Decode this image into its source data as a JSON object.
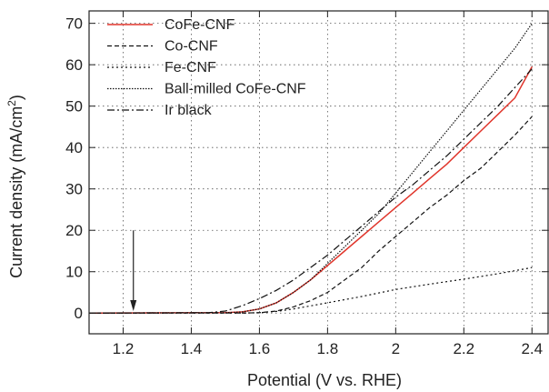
{
  "chart_data": {
    "type": "line",
    "xlabel": "Potential (V vs. RHE)",
    "ylabel": "Current density (mA/cm",
    "ylabel_superscript": "2",
    "ylabel_suffix": ")",
    "xlim": [
      1.1,
      2.45
    ],
    "ylim": [
      -5,
      73
    ],
    "xticks": [
      1.2,
      1.4,
      1.6,
      1.8,
      2.0,
      2.2,
      2.4
    ],
    "xtick_labels": [
      "1.2",
      "1.4",
      "1.6",
      "1.8",
      "2",
      "2.2",
      "2.4"
    ],
    "yticks": [
      0,
      10,
      20,
      30,
      40,
      50,
      60,
      70
    ],
    "ytick_labels": [
      "0",
      "10",
      "20",
      "30",
      "40",
      "50",
      "60",
      "70"
    ],
    "grid": "dotted",
    "legend_position": "top-left",
    "annotation": {
      "type": "arrow",
      "x": 1.23,
      "y_from": 20,
      "y_to": 0.5
    },
    "series": [
      {
        "name": "CoFe-CNF",
        "color": "#e0352b",
        "style": "solid",
        "x": [
          1.1,
          1.5,
          1.55,
          1.6,
          1.65,
          1.7,
          1.75,
          1.8,
          1.85,
          1.9,
          1.95,
          2.0,
          2.05,
          2.1,
          2.15,
          2.2,
          2.25,
          2.3,
          2.35,
          2.4
        ],
        "y": [
          0,
          0.1,
          0.3,
          1,
          2.5,
          5,
          8,
          11.5,
          15,
          18.5,
          22,
          25.5,
          29,
          32.5,
          36,
          40,
          44,
          48,
          52,
          59.5
        ]
      },
      {
        "name": "Co-CNF",
        "color": "#111111",
        "style": "dashed",
        "x": [
          1.1,
          1.55,
          1.6,
          1.65,
          1.7,
          1.75,
          1.8,
          1.85,
          1.9,
          1.95,
          2.0,
          2.05,
          2.1,
          2.15,
          2.2,
          2.25,
          2.3,
          2.35,
          2.4
        ],
        "y": [
          0,
          0,
          0.1,
          0.5,
          1.5,
          3,
          5,
          8,
          11,
          15,
          18.5,
          22,
          25.5,
          28.5,
          32,
          35,
          39,
          43,
          47.5
        ]
      },
      {
        "name": "Fe-CNF",
        "color": "#111111",
        "style": "dotted",
        "x": [
          1.1,
          1.55,
          1.6,
          1.65,
          1.7,
          1.8,
          1.9,
          2.0,
          2.1,
          2.2,
          2.3,
          2.4
        ],
        "y": [
          0,
          0,
          0.1,
          0.4,
          1,
          2.5,
          4,
          5.7,
          7,
          8.2,
          9.5,
          11
        ]
      },
      {
        "name": "Ball-milled CoFe-CNF",
        "color": "#111111",
        "style": "densely-dotted",
        "x": [
          1.1,
          1.5,
          1.55,
          1.6,
          1.65,
          1.7,
          1.75,
          1.8,
          1.85,
          1.9,
          1.95,
          2.0,
          2.05,
          2.1,
          2.15,
          2.2,
          2.25,
          2.3,
          2.35,
          2.4
        ],
        "y": [
          0,
          0.1,
          0.3,
          1,
          2.5,
          5,
          8,
          12,
          16,
          20,
          24,
          29,
          34,
          39,
          44,
          49,
          54,
          59,
          64,
          70
        ]
      },
      {
        "name": "Ir black",
        "color": "#111111",
        "style": "dash-dot",
        "x": [
          1.1,
          1.45,
          1.5,
          1.55,
          1.6,
          1.65,
          1.7,
          1.75,
          1.8,
          1.85,
          1.9,
          1.95,
          2.0,
          2.05,
          2.1,
          2.15,
          2.2,
          2.25,
          2.3,
          2.35,
          2.4
        ],
        "y": [
          0,
          0.1,
          0.5,
          1.8,
          3.5,
          5.5,
          8,
          11,
          14,
          17.5,
          21,
          24.5,
          28,
          31,
          34.5,
          38,
          42,
          46,
          50,
          54.5,
          59
        ]
      }
    ]
  }
}
